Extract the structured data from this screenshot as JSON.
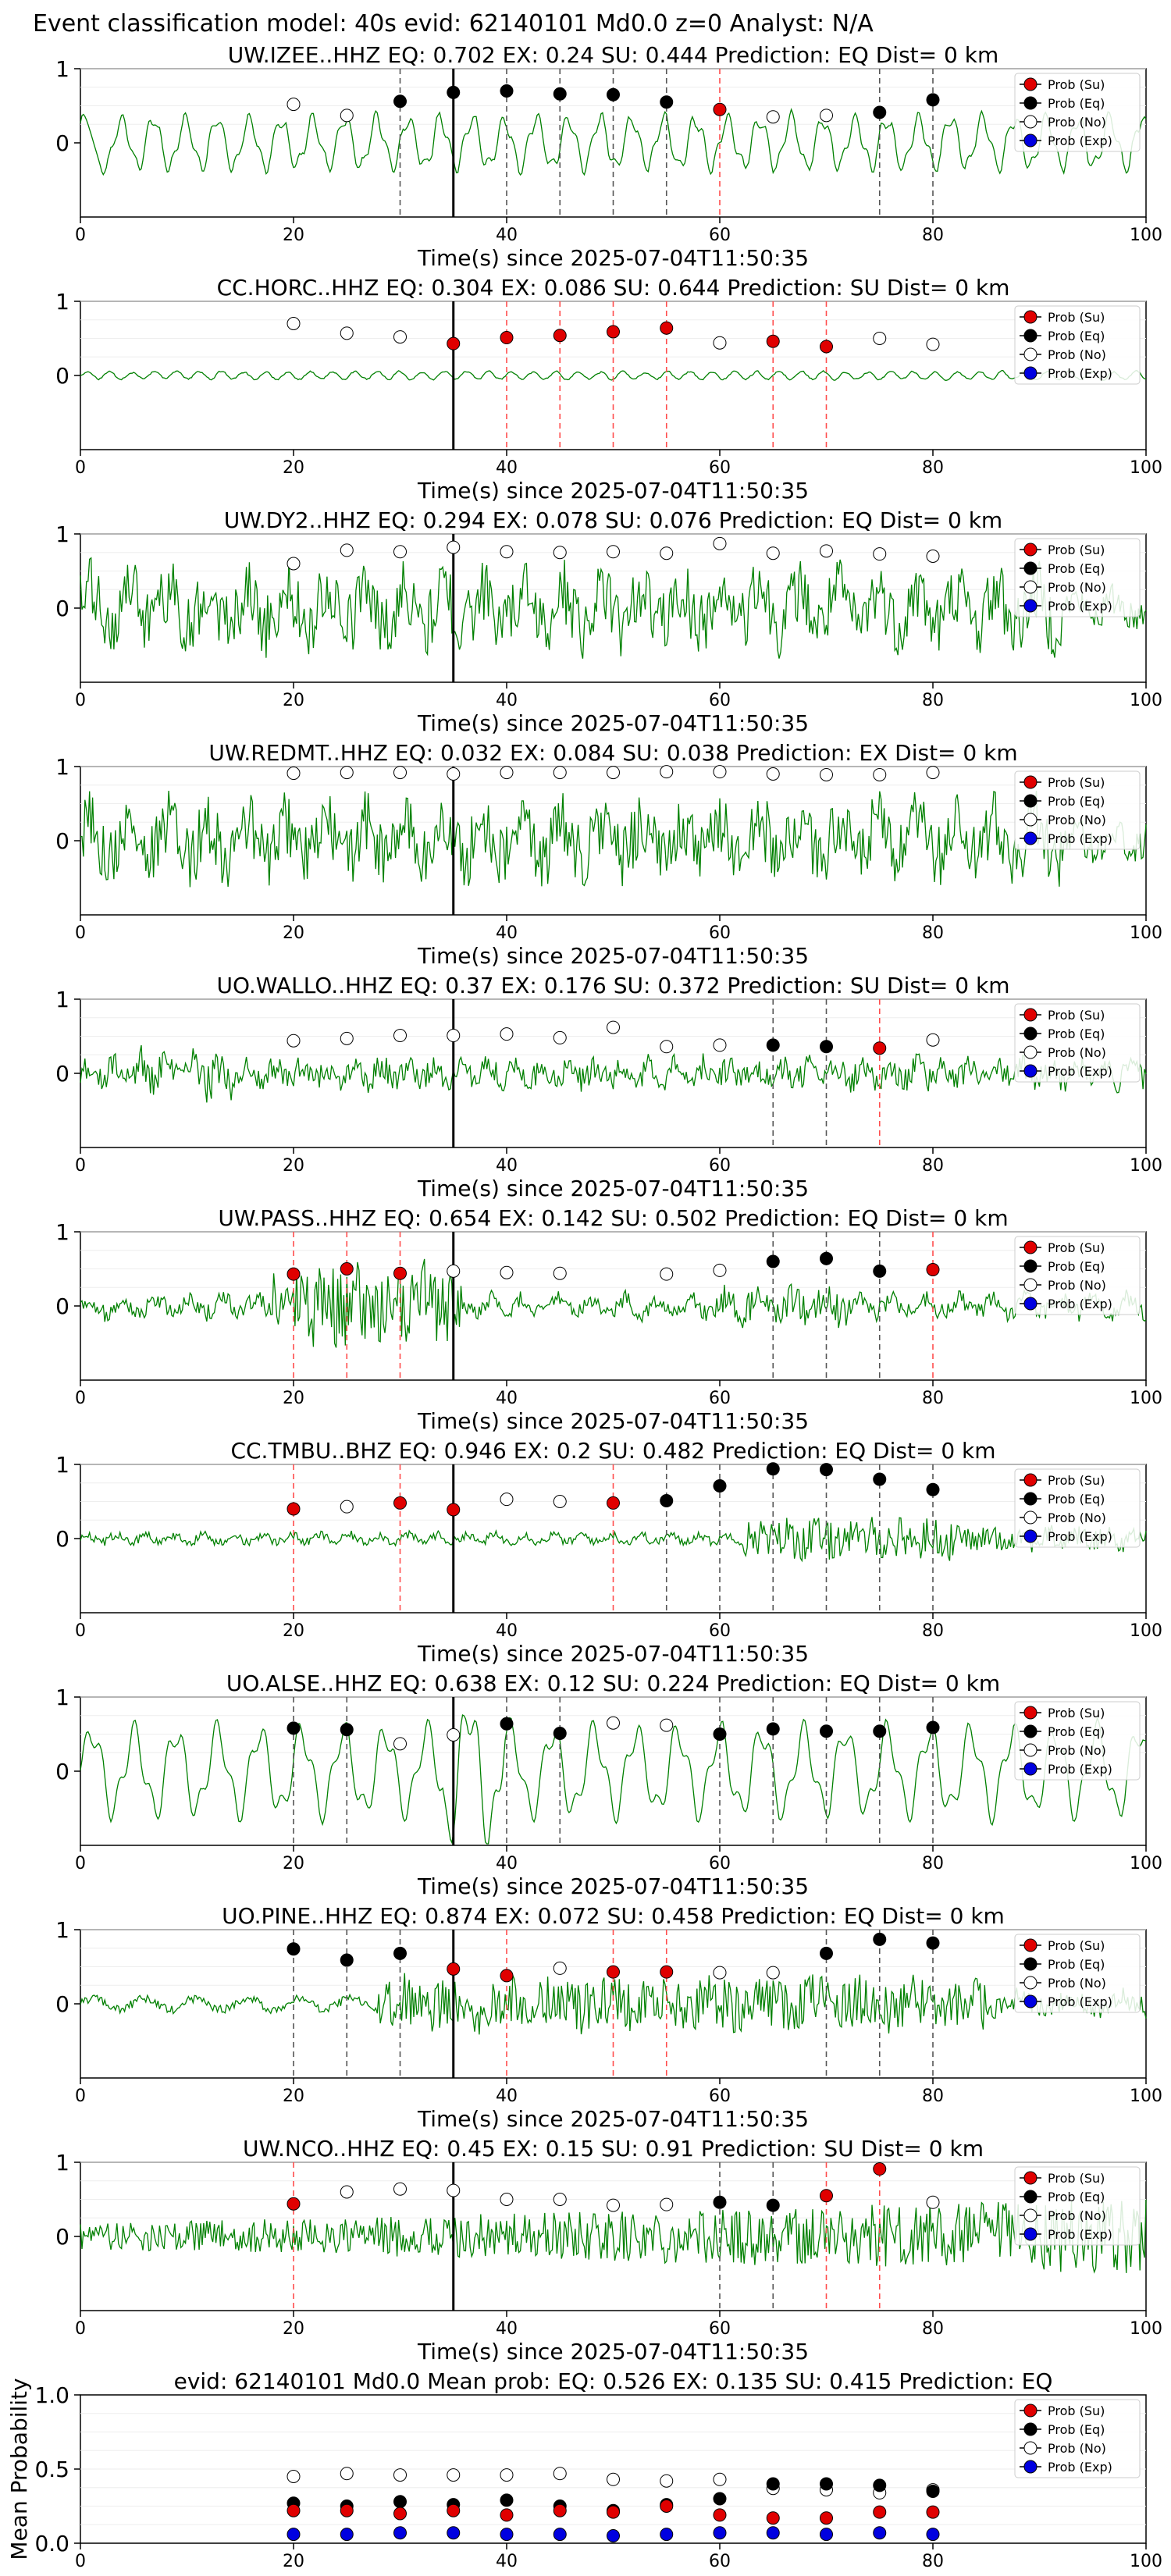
{
  "header": {
    "title": "Event classification model: 40s evid: 62140101 Md0.0 z=0 Analyst: N/A"
  },
  "legend_labels": [
    "Prob (Su)",
    "Prob (Eq)",
    "Prob (No)",
    "Prob (Exp)"
  ],
  "colors": {
    "su": "#e00000",
    "eq": "#000000",
    "no": "#ffffff",
    "exp": "#0000e0",
    "trace": "#008000",
    "vline_su": "#ff4d4d",
    "vline_eq": "#555555",
    "arrival": "#000000"
  },
  "window_x": [
    20,
    25,
    30,
    35,
    40,
    45,
    50,
    55,
    60,
    65,
    70,
    75,
    80
  ],
  "chart_data": [
    {
      "type": "line",
      "title": "UW.IZEE..HHZ   EQ: 0.702  EX: 0.24  SU: 0.444   Prediction: EQ    Dist= 0 km",
      "xlabel": "Time(s) since 2025-07-04T11:50:35",
      "xlim": [
        0,
        100
      ],
      "ylim": [
        -1,
        1
      ],
      "xticks": [
        "0",
        "20",
        "40",
        "60",
        "80",
        "100"
      ],
      "yticks": [
        "1",
        "0"
      ],
      "arrival": 35,
      "trace_style": "wave",
      "points": [
        {
          "x": 20,
          "y": 0.52,
          "c": "no"
        },
        {
          "x": 25,
          "y": 0.37,
          "c": "no"
        },
        {
          "x": 30,
          "y": 0.56,
          "c": "eq"
        },
        {
          "x": 35,
          "y": 0.68,
          "c": "eq"
        },
        {
          "x": 40,
          "y": 0.7,
          "c": "eq"
        },
        {
          "x": 45,
          "y": 0.66,
          "c": "eq"
        },
        {
          "x": 50,
          "y": 0.65,
          "c": "eq"
        },
        {
          "x": 55,
          "y": 0.55,
          "c": "eq"
        },
        {
          "x": 60,
          "y": 0.45,
          "c": "su"
        },
        {
          "x": 65,
          "y": 0.35,
          "c": "no"
        },
        {
          "x": 70,
          "y": 0.37,
          "c": "no"
        },
        {
          "x": 75,
          "y": 0.41,
          "c": "eq"
        },
        {
          "x": 80,
          "y": 0.58,
          "c": "eq"
        }
      ]
    },
    {
      "type": "line",
      "title": "CC.HORC..HHZ   EQ: 0.304  EX: 0.086  SU: 0.644   Prediction: SU    Dist= 0 km",
      "xlabel": "Time(s) since 2025-07-04T11:50:35",
      "xlim": [
        0,
        100
      ],
      "ylim": [
        -1,
        1
      ],
      "xticks": [
        "0",
        "20",
        "40",
        "60",
        "80",
        "100"
      ],
      "yticks": [
        "1",
        "0"
      ],
      "arrival": 35,
      "trace_style": "quiet",
      "points": [
        {
          "x": 20,
          "y": 0.7,
          "c": "no"
        },
        {
          "x": 25,
          "y": 0.57,
          "c": "no"
        },
        {
          "x": 30,
          "y": 0.52,
          "c": "no"
        },
        {
          "x": 35,
          "y": 0.43,
          "c": "su"
        },
        {
          "x": 40,
          "y": 0.51,
          "c": "su"
        },
        {
          "x": 45,
          "y": 0.54,
          "c": "su"
        },
        {
          "x": 50,
          "y": 0.59,
          "c": "su"
        },
        {
          "x": 55,
          "y": 0.64,
          "c": "su"
        },
        {
          "x": 60,
          "y": 0.44,
          "c": "no"
        },
        {
          "x": 65,
          "y": 0.46,
          "c": "su"
        },
        {
          "x": 70,
          "y": 0.39,
          "c": "su"
        },
        {
          "x": 75,
          "y": 0.5,
          "c": "no"
        },
        {
          "x": 80,
          "y": 0.42,
          "c": "no"
        }
      ]
    },
    {
      "type": "line",
      "title": "UW.DY2..HHZ   EQ: 0.294  EX: 0.078  SU: 0.076   Prediction: EQ    Dist= 0 km",
      "xlabel": "Time(s) since 2025-07-04T11:50:35",
      "xlim": [
        0,
        100
      ],
      "ylim": [
        -1,
        1
      ],
      "xticks": [
        "0",
        "20",
        "40",
        "60",
        "80",
        "100"
      ],
      "yticks": [
        "1",
        "0"
      ],
      "arrival": 35,
      "trace_style": "noise",
      "points": [
        {
          "x": 20,
          "y": 0.6,
          "c": "no"
        },
        {
          "x": 25,
          "y": 0.78,
          "c": "no"
        },
        {
          "x": 30,
          "y": 0.76,
          "c": "no"
        },
        {
          "x": 35,
          "y": 0.82,
          "c": "no"
        },
        {
          "x": 40,
          "y": 0.76,
          "c": "no"
        },
        {
          "x": 45,
          "y": 0.75,
          "c": "no"
        },
        {
          "x": 50,
          "y": 0.76,
          "c": "no"
        },
        {
          "x": 55,
          "y": 0.74,
          "c": "no"
        },
        {
          "x": 60,
          "y": 0.87,
          "c": "no"
        },
        {
          "x": 65,
          "y": 0.74,
          "c": "no"
        },
        {
          "x": 70,
          "y": 0.77,
          "c": "no"
        },
        {
          "x": 75,
          "y": 0.73,
          "c": "no"
        },
        {
          "x": 80,
          "y": 0.7,
          "c": "no"
        }
      ]
    },
    {
      "type": "line",
      "title": "UW.REDMT..HHZ   EQ: 0.032  EX: 0.084  SU: 0.038   Prediction: EX    Dist= 0 km",
      "xlabel": "Time(s) since 2025-07-04T11:50:35",
      "xlim": [
        0,
        100
      ],
      "ylim": [
        -1,
        1
      ],
      "xticks": [
        "0",
        "20",
        "40",
        "60",
        "80",
        "100"
      ],
      "yticks": [
        "1",
        "0"
      ],
      "arrival": 35,
      "trace_style": "noise",
      "points": [
        {
          "x": 20,
          "y": 0.91,
          "c": "no"
        },
        {
          "x": 25,
          "y": 0.92,
          "c": "no"
        },
        {
          "x": 30,
          "y": 0.92,
          "c": "no"
        },
        {
          "x": 35,
          "y": 0.9,
          "c": "no"
        },
        {
          "x": 40,
          "y": 0.92,
          "c": "no"
        },
        {
          "x": 45,
          "y": 0.92,
          "c": "no"
        },
        {
          "x": 50,
          "y": 0.92,
          "c": "no"
        },
        {
          "x": 55,
          "y": 0.93,
          "c": "no"
        },
        {
          "x": 60,
          "y": 0.93,
          "c": "no"
        },
        {
          "x": 65,
          "y": 0.9,
          "c": "no"
        },
        {
          "x": 70,
          "y": 0.89,
          "c": "no"
        },
        {
          "x": 75,
          "y": 0.89,
          "c": "no"
        },
        {
          "x": 80,
          "y": 0.92,
          "c": "no"
        }
      ]
    },
    {
      "type": "line",
      "title": "UO.WALLO..HHZ   EQ: 0.37  EX: 0.176  SU: 0.372   Prediction: SU    Dist= 0 km",
      "xlabel": "Time(s) since 2025-07-04T11:50:35",
      "xlim": [
        0,
        100
      ],
      "ylim": [
        -1,
        1
      ],
      "xticks": [
        "0",
        "20",
        "40",
        "60",
        "80",
        "100"
      ],
      "yticks": [
        "1",
        "0"
      ],
      "arrival": 35,
      "trace_style": "low",
      "points": [
        {
          "x": 20,
          "y": 0.44,
          "c": "no"
        },
        {
          "x": 25,
          "y": 0.47,
          "c": "no"
        },
        {
          "x": 30,
          "y": 0.51,
          "c": "no"
        },
        {
          "x": 35,
          "y": 0.51,
          "c": "no"
        },
        {
          "x": 40,
          "y": 0.53,
          "c": "no"
        },
        {
          "x": 45,
          "y": 0.48,
          "c": "no"
        },
        {
          "x": 50,
          "y": 0.62,
          "c": "no"
        },
        {
          "x": 55,
          "y": 0.36,
          "c": "no"
        },
        {
          "x": 60,
          "y": 0.38,
          "c": "no"
        },
        {
          "x": 65,
          "y": 0.38,
          "c": "eq"
        },
        {
          "x": 70,
          "y": 0.36,
          "c": "eq"
        },
        {
          "x": 75,
          "y": 0.34,
          "c": "su"
        },
        {
          "x": 80,
          "y": 0.45,
          "c": "no"
        }
      ]
    },
    {
      "type": "line",
      "title": "UW.PASS..HHZ   EQ: 0.654  EX: 0.142  SU: 0.502   Prediction: EQ    Dist= 0 km",
      "xlabel": "Time(s) since 2025-07-04T11:50:35",
      "xlim": [
        0,
        100
      ],
      "ylim": [
        -1,
        1
      ],
      "xticks": [
        "0",
        "20",
        "40",
        "60",
        "80",
        "100"
      ],
      "yticks": [
        "1",
        "0"
      ],
      "arrival": 35,
      "trace_style": "burst",
      "points": [
        {
          "x": 20,
          "y": 0.43,
          "c": "su"
        },
        {
          "x": 25,
          "y": 0.5,
          "c": "su"
        },
        {
          "x": 30,
          "y": 0.44,
          "c": "su"
        },
        {
          "x": 35,
          "y": 0.47,
          "c": "no"
        },
        {
          "x": 40,
          "y": 0.45,
          "c": "no"
        },
        {
          "x": 45,
          "y": 0.44,
          "c": "no"
        },
        {
          "x": 55,
          "y": 0.43,
          "c": "no"
        },
        {
          "x": 60,
          "y": 0.48,
          "c": "no"
        },
        {
          "x": 65,
          "y": 0.6,
          "c": "eq"
        },
        {
          "x": 70,
          "y": 0.64,
          "c": "eq"
        },
        {
          "x": 75,
          "y": 0.47,
          "c": "eq"
        },
        {
          "x": 80,
          "y": 0.49,
          "c": "su"
        }
      ]
    },
    {
      "type": "line",
      "title": "CC.TMBU..BHZ   EQ: 0.946  EX: 0.2  SU: 0.482   Prediction: EQ    Dist= 0 km",
      "xlabel": "Time(s) since 2025-07-04T11:50:35",
      "xlim": [
        0,
        100
      ],
      "ylim": [
        -1,
        1
      ],
      "xticks": [
        "0",
        "20",
        "40",
        "60",
        "80",
        "100"
      ],
      "yticks": [
        "1",
        "0"
      ],
      "arrival": 35,
      "trace_style": "late",
      "points": [
        {
          "x": 20,
          "y": 0.4,
          "c": "su"
        },
        {
          "x": 25,
          "y": 0.43,
          "c": "no"
        },
        {
          "x": 30,
          "y": 0.48,
          "c": "su"
        },
        {
          "x": 35,
          "y": 0.39,
          "c": "su"
        },
        {
          "x": 40,
          "y": 0.53,
          "c": "no"
        },
        {
          "x": 45,
          "y": 0.5,
          "c": "no"
        },
        {
          "x": 50,
          "y": 0.48,
          "c": "su"
        },
        {
          "x": 55,
          "y": 0.51,
          "c": "eq"
        },
        {
          "x": 60,
          "y": 0.71,
          "c": "eq"
        },
        {
          "x": 65,
          "y": 0.94,
          "c": "eq"
        },
        {
          "x": 70,
          "y": 0.93,
          "c": "eq"
        },
        {
          "x": 75,
          "y": 0.8,
          "c": "eq"
        },
        {
          "x": 80,
          "y": 0.66,
          "c": "eq"
        }
      ]
    },
    {
      "type": "line",
      "title": "UO.ALSE..HHZ   EQ: 0.638  EX: 0.12  SU: 0.224   Prediction: EQ    Dist= 0 km",
      "xlabel": "Time(s) since 2025-07-04T11:50:35",
      "xlim": [
        0,
        100
      ],
      "ylim": [
        -1,
        1
      ],
      "xticks": [
        "0",
        "20",
        "40",
        "60",
        "80",
        "100"
      ],
      "yticks": [
        "1",
        "0"
      ],
      "arrival": 35,
      "trace_style": "bigwave",
      "points": [
        {
          "x": 20,
          "y": 0.58,
          "c": "eq"
        },
        {
          "x": 25,
          "y": 0.56,
          "c": "eq"
        },
        {
          "x": 30,
          "y": 0.37,
          "c": "no"
        },
        {
          "x": 35,
          "y": 0.49,
          "c": "no"
        },
        {
          "x": 40,
          "y": 0.64,
          "c": "eq"
        },
        {
          "x": 45,
          "y": 0.51,
          "c": "eq"
        },
        {
          "x": 50,
          "y": 0.65,
          "c": "no"
        },
        {
          "x": 55,
          "y": 0.62,
          "c": "no"
        },
        {
          "x": 60,
          "y": 0.5,
          "c": "eq"
        },
        {
          "x": 65,
          "y": 0.57,
          "c": "eq"
        },
        {
          "x": 70,
          "y": 0.54,
          "c": "eq"
        },
        {
          "x": 75,
          "y": 0.54,
          "c": "eq"
        },
        {
          "x": 80,
          "y": 0.59,
          "c": "eq"
        }
      ]
    },
    {
      "type": "line",
      "title": "UO.PINE..HHZ   EQ: 0.874  EX: 0.072  SU: 0.458   Prediction: EQ    Dist= 0 km",
      "xlabel": "Time(s) since 2025-07-04T11:50:35",
      "xlim": [
        0,
        100
      ],
      "ylim": [
        -1,
        1
      ],
      "xticks": [
        "0",
        "20",
        "40",
        "60",
        "80",
        "100"
      ],
      "yticks": [
        "1",
        "0"
      ],
      "arrival": 35,
      "trace_style": "step",
      "points": [
        {
          "x": 20,
          "y": 0.74,
          "c": "eq"
        },
        {
          "x": 25,
          "y": 0.59,
          "c": "eq"
        },
        {
          "x": 30,
          "y": 0.68,
          "c": "eq"
        },
        {
          "x": 35,
          "y": 0.47,
          "c": "su"
        },
        {
          "x": 40,
          "y": 0.38,
          "c": "su"
        },
        {
          "x": 45,
          "y": 0.48,
          "c": "no"
        },
        {
          "x": 50,
          "y": 0.43,
          "c": "su"
        },
        {
          "x": 55,
          "y": 0.43,
          "c": "su"
        },
        {
          "x": 60,
          "y": 0.42,
          "c": "no"
        },
        {
          "x": 65,
          "y": 0.42,
          "c": "no"
        },
        {
          "x": 70,
          "y": 0.68,
          "c": "eq"
        },
        {
          "x": 75,
          "y": 0.87,
          "c": "eq"
        },
        {
          "x": 80,
          "y": 0.82,
          "c": "eq"
        }
      ]
    },
    {
      "type": "line",
      "title": "UW.NCO..HHZ   EQ: 0.45  EX: 0.15  SU: 0.91   Prediction: SU    Dist= 0 km",
      "xlabel": "Time(s) since 2025-07-04T11:50:35",
      "xlim": [
        0,
        100
      ],
      "ylim": [
        -1,
        1
      ],
      "xticks": [
        "0",
        "20",
        "40",
        "60",
        "80",
        "100"
      ],
      "yticks": [
        "1",
        "0"
      ],
      "arrival": 35,
      "trace_style": "rising",
      "points": [
        {
          "x": 20,
          "y": 0.44,
          "c": "su"
        },
        {
          "x": 25,
          "y": 0.6,
          "c": "no"
        },
        {
          "x": 30,
          "y": 0.64,
          "c": "no"
        },
        {
          "x": 35,
          "y": 0.62,
          "c": "no"
        },
        {
          "x": 40,
          "y": 0.5,
          "c": "no"
        },
        {
          "x": 45,
          "y": 0.5,
          "c": "no"
        },
        {
          "x": 50,
          "y": 0.42,
          "c": "no"
        },
        {
          "x": 55,
          "y": 0.43,
          "c": "no"
        },
        {
          "x": 60,
          "y": 0.46,
          "c": "eq"
        },
        {
          "x": 65,
          "y": 0.42,
          "c": "eq"
        },
        {
          "x": 70,
          "y": 0.55,
          "c": "su"
        },
        {
          "x": 75,
          "y": 0.91,
          "c": "su"
        },
        {
          "x": 80,
          "y": 0.46,
          "c": "no"
        }
      ]
    },
    {
      "type": "scatter",
      "title": "evid: 62140101  Md0.0   Mean prob:   EQ: 0.526  EX: 0.135  SU: 0.415   Prediction: EQ",
      "xlabel": "",
      "ylabel": "Mean Probability",
      "xlim": [
        0,
        100
      ],
      "ylim": [
        0,
        1
      ],
      "xticks": [
        "0",
        "20",
        "40",
        "60",
        "80",
        "100"
      ],
      "yticks": [
        "0.0",
        "0.5",
        "1.0"
      ],
      "series": [
        {
          "name": "Prob (No)",
          "c": "no",
          "x": [
            20,
            25,
            30,
            35,
            40,
            45,
            50,
            55,
            60,
            65,
            70,
            75,
            80
          ],
          "y": [
            0.45,
            0.47,
            0.46,
            0.46,
            0.46,
            0.47,
            0.43,
            0.42,
            0.43,
            0.37,
            0.36,
            0.34,
            0.36
          ]
        },
        {
          "name": "Prob (Eq)",
          "c": "eq",
          "x": [
            20,
            25,
            30,
            35,
            40,
            45,
            50,
            55,
            60,
            65,
            70,
            75,
            80
          ],
          "y": [
            0.27,
            0.25,
            0.28,
            0.26,
            0.29,
            0.25,
            0.22,
            0.26,
            0.3,
            0.4,
            0.4,
            0.39,
            0.35
          ]
        },
        {
          "name": "Prob (Su)",
          "c": "su",
          "x": [
            20,
            25,
            30,
            35,
            40,
            45,
            50,
            55,
            60,
            65,
            70,
            75,
            80
          ],
          "y": [
            0.22,
            0.22,
            0.2,
            0.22,
            0.19,
            0.22,
            0.21,
            0.25,
            0.19,
            0.17,
            0.17,
            0.21,
            0.21
          ]
        },
        {
          "name": "Prob (Exp)",
          "c": "exp",
          "x": [
            20,
            25,
            30,
            35,
            40,
            45,
            50,
            55,
            60,
            65,
            70,
            75,
            80
          ],
          "y": [
            0.06,
            0.06,
            0.07,
            0.07,
            0.06,
            0.06,
            0.05,
            0.06,
            0.07,
            0.07,
            0.06,
            0.07,
            0.06
          ]
        }
      ]
    }
  ]
}
